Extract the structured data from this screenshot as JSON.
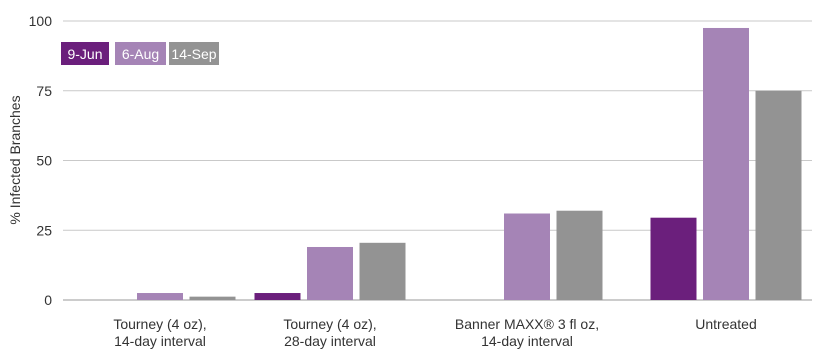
{
  "chart_data": {
    "type": "bar",
    "ylabel": "% Infected Branches",
    "ylim": [
      0,
      100
    ],
    "yticks": [
      0,
      25,
      50,
      75,
      100
    ],
    "grid": "horizontal",
    "legend_position": "top-left",
    "categories": [
      [
        "Tourney (4 oz),",
        "14-day interval"
      ],
      [
        "Tourney (4 oz),",
        "28-day interval"
      ],
      [
        "Banner MAXX® 3 fl oz,",
        "14-day interval"
      ],
      [
        "Untreated"
      ]
    ],
    "series": [
      {
        "name": "9-Jun",
        "color": "#6b1f7c",
        "values": [
          0,
          2.5,
          0,
          29.5
        ]
      },
      {
        "name": "6-Aug",
        "color": "#a584b6",
        "values": [
          2.5,
          19,
          31,
          97.5
        ]
      },
      {
        "name": "14-Sep",
        "color": "#939393",
        "values": [
          1.2,
          20.5,
          32,
          75
        ]
      }
    ]
  }
}
